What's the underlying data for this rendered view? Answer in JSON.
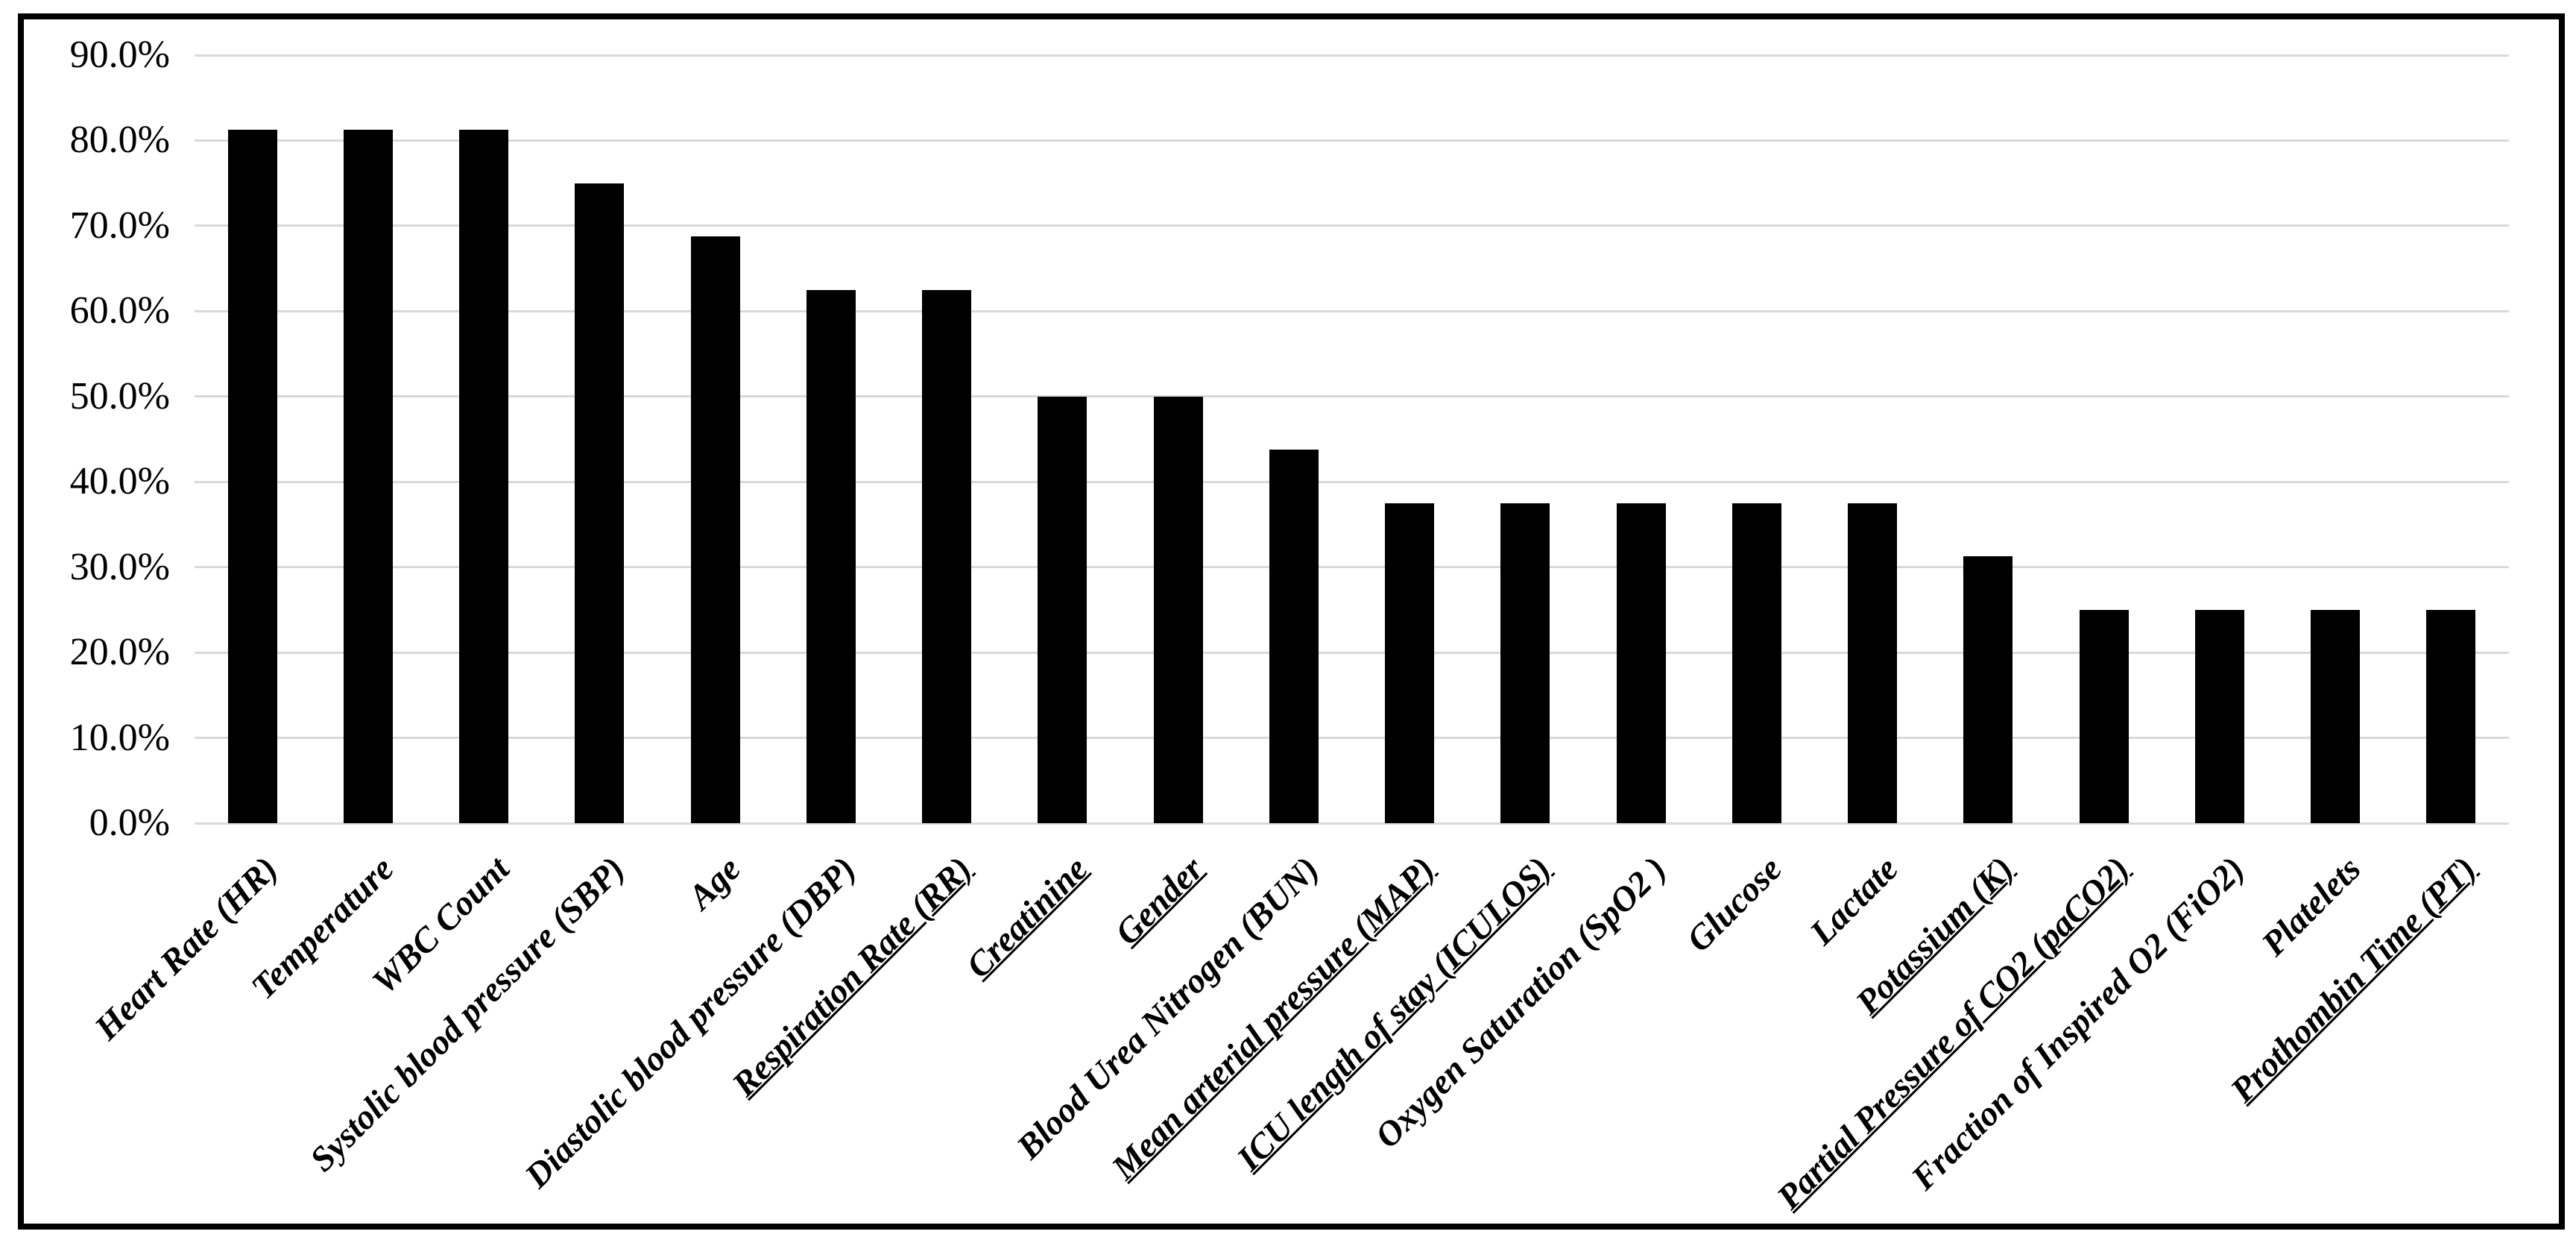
{
  "figure": {
    "background_color": "#ffffff",
    "border_color": "#000000"
  },
  "chart_data": {
    "type": "bar",
    "title": "",
    "xlabel": "",
    "ylabel": "",
    "categories": [
      "Heart Rate (HR)",
      "Temperature",
      "WBC Count",
      "Systolic blood pressure (SBP)",
      "Age",
      "Diastolic blood pressure (DBP)",
      "Respiration Rate (RR)",
      "Creatinine",
      "Gender",
      "Blood Urea Nitrogen (BUN)",
      "Mean arterial pressure (MAP)",
      "ICU length of stay (ICULOS)",
      "Oxygen Saturation (SpO2 )",
      "Glucose",
      "Lactate",
      "Potassium (K)",
      "Partial Pressure of CO2 (paCO2)",
      "Fraction of Inspired O2 (FiO2)",
      "Platelets",
      "Prothombin Time (PT)"
    ],
    "values": [
      81.3,
      81.3,
      81.3,
      75.0,
      68.8,
      62.5,
      62.5,
      50.0,
      50.0,
      43.8,
      37.5,
      37.5,
      37.5,
      37.5,
      37.5,
      31.3,
      25.0,
      25.0,
      25.0,
      25.0
    ],
    "underlined_category_indexes": [
      6,
      7,
      8,
      10,
      11,
      15,
      16,
      19
    ],
    "y_ticks": [
      "90.0%",
      "80.0%",
      "70.0%",
      "60.0%",
      "50.0%",
      "40.0%",
      "30.0%",
      "20.0%",
      "10.0%",
      "0.0%"
    ],
    "ylim": [
      0,
      90
    ],
    "bar_color": "#000000",
    "gridline_color": "#d9d9d9",
    "grid": "horizontal",
    "legend": "none",
    "category_label_rotation_deg": 45,
    "category_label_style": "bold italic serif",
    "y_label_style": "regular serif"
  }
}
